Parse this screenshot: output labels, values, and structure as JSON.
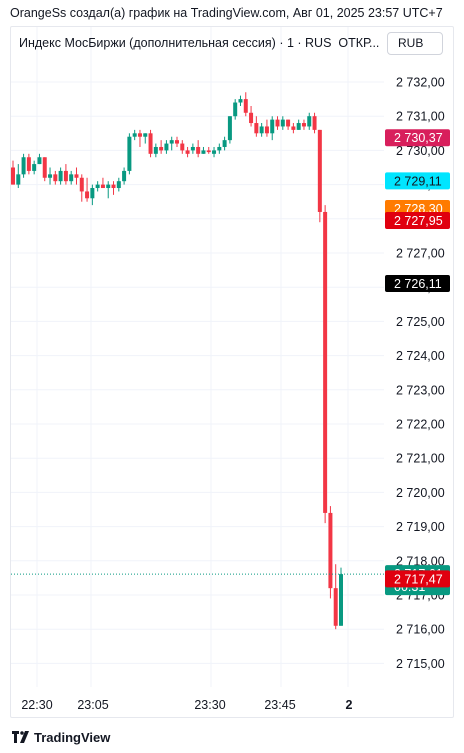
{
  "header": {
    "caption": "OrangeSs создал(а) график на TradingView.com, Авг 01, 2025 23:57 UTC+7"
  },
  "legend": {
    "symbol": "Индекс МосБиржи (дополнительная сессия) · 1 · RUS",
    "status": "ОТКР..."
  },
  "currency_button": "RUB",
  "footer": {
    "brand": "TradingView",
    "logo_icon": "tradingview-logo-icon"
  },
  "chart_data": {
    "type": "candlestick",
    "y_ticks": [
      "2 732,00",
      "2 731,00",
      "2 730,00",
      "2 729,00",
      "2 728,00",
      "2 727,00",
      "2 726,00",
      "2 725,00",
      "2 724,00",
      "2 723,00",
      "2 722,00",
      "2 721,00",
      "2 720,00",
      "2 719,00",
      "2 718,00",
      "2 717,00",
      "2 716,00",
      "2 715,00"
    ],
    "x_ticks": [
      "22:30",
      "23:05",
      "23:30",
      "23:45",
      "2"
    ],
    "colors": {
      "up": "#089981",
      "down": "#f23645"
    },
    "candles": [
      [
        2729.5,
        2729.7,
        2729.0,
        2729.0
      ],
      [
        2729.0,
        2729.6,
        2728.9,
        2729.3
      ],
      [
        2729.3,
        2729.9,
        2729.2,
        2729.8
      ],
      [
        2729.8,
        2729.9,
        2729.3,
        2729.4
      ],
      [
        2729.4,
        2729.7,
        2729.3,
        2729.6
      ],
      [
        2729.6,
        2729.9,
        2729.6,
        2729.8
      ],
      [
        2729.8,
        2729.8,
        2729.1,
        2729.2
      ],
      [
        2729.2,
        2729.5,
        2729.0,
        2729.3
      ],
      [
        2729.3,
        2729.4,
        2729.0,
        2729.1
      ],
      [
        2729.1,
        2729.5,
        2729.0,
        2729.4
      ],
      [
        2729.4,
        2729.6,
        2729.0,
        2729.1
      ],
      [
        2729.1,
        2729.4,
        2729.0,
        2729.3
      ],
      [
        2729.3,
        2729.5,
        2729.0,
        2729.2
      ],
      [
        2729.2,
        2729.3,
        2728.5,
        2728.8
      ],
      [
        2728.8,
        2729.2,
        2728.5,
        2728.6
      ],
      [
        2728.6,
        2729.0,
        2728.4,
        2728.9
      ],
      [
        2728.9,
        2729.1,
        2728.8,
        2729.0
      ],
      [
        2729.0,
        2729.2,
        2728.9,
        2728.9
      ],
      [
        2728.9,
        2729.1,
        2728.6,
        2729.0
      ],
      [
        2729.0,
        2729.1,
        2728.7,
        2728.9
      ],
      [
        2728.9,
        2729.2,
        2728.8,
        2729.1
      ],
      [
        2729.1,
        2729.5,
        2729.0,
        2729.4
      ],
      [
        2729.4,
        2730.5,
        2729.3,
        2730.4
      ],
      [
        2730.4,
        2730.6,
        2730.3,
        2730.5
      ],
      [
        2730.5,
        2730.6,
        2730.1,
        2730.4
      ],
      [
        2730.4,
        2730.5,
        2730.2,
        2730.5
      ],
      [
        2730.5,
        2730.6,
        2729.8,
        2729.9
      ],
      [
        2729.9,
        2730.2,
        2729.8,
        2730.1
      ],
      [
        2730.1,
        2730.3,
        2729.9,
        2730.0
      ],
      [
        2730.0,
        2730.3,
        2729.9,
        2730.2
      ],
      [
        2730.2,
        2730.4,
        2730.0,
        2730.3
      ],
      [
        2730.3,
        2730.4,
        2730.1,
        2730.2
      ],
      [
        2730.2,
        2730.3,
        2729.9,
        2730.0
      ],
      [
        2730.0,
        2730.1,
        2729.8,
        2729.9
      ],
      [
        2730.0,
        2730.2,
        2729.9,
        2730.1
      ],
      [
        2730.1,
        2730.3,
        2729.8,
        2729.9
      ],
      [
        2729.9,
        2730.1,
        2729.9,
        2730.0
      ],
      [
        2730.0,
        2730.1,
        2729.9,
        2729.95
      ],
      [
        2729.9,
        2730.1,
        2729.8,
        2730.0
      ],
      [
        2730.0,
        2730.2,
        2729.9,
        2730.1
      ],
      [
        2730.1,
        2730.4,
        2730.0,
        2730.3
      ],
      [
        2730.3,
        2731.0,
        2730.2,
        2731.0
      ],
      [
        2731.0,
        2731.5,
        2730.9,
        2731.4
      ],
      [
        2731.4,
        2731.6,
        2731.3,
        2731.5
      ],
      [
        2731.5,
        2731.7,
        2731.0,
        2731.1
      ],
      [
        2731.1,
        2731.3,
        2730.7,
        2730.8
      ],
      [
        2730.8,
        2731.0,
        2730.4,
        2730.5
      ],
      [
        2730.5,
        2730.8,
        2730.4,
        2730.7
      ],
      [
        2730.7,
        2730.9,
        2730.4,
        2730.5
      ],
      [
        2730.5,
        2731.0,
        2730.3,
        2730.9
      ],
      [
        2730.9,
        2731.0,
        2730.6,
        2730.7
      ],
      [
        2730.7,
        2731.0,
        2730.6,
        2730.9
      ],
      [
        2730.9,
        2730.9,
        2730.6,
        2730.7
      ],
      [
        2730.7,
        2730.8,
        2730.5,
        2730.6
      ],
      [
        2730.6,
        2730.9,
        2730.6,
        2730.8
      ],
      [
        2730.8,
        2730.9,
        2730.6,
        2730.7
      ],
      [
        2730.7,
        2731.1,
        2730.6,
        2731.0
      ],
      [
        2731.0,
        2731.1,
        2730.5,
        2730.6
      ],
      [
        2730.6,
        2730.6,
        2727.9,
        2728.2
      ],
      [
        2728.2,
        2728.4,
        2719.1,
        2719.4
      ],
      [
        2719.4,
        2719.6,
        2716.9,
        2717.2
      ],
      [
        2717.2,
        2717.9,
        2716.0,
        2716.1
      ],
      [
        2716.1,
        2717.8,
        2716.1,
        2717.61
      ]
    ],
    "price_labels": [
      {
        "value": 2730.37,
        "text": "2 730,37",
        "bg": "#d81f5c",
        "fg": "#ffffff"
      },
      {
        "value": 2729.11,
        "text": "2 729,11",
        "bg": "#00e5ff",
        "fg": "#131722"
      },
      {
        "value": 2728.3,
        "text": "2 728,30",
        "bg": "#ff7b00",
        "fg": "#ffffff"
      },
      {
        "value": 2727.95,
        "text": "2 727,95",
        "bg": "#e0000f",
        "fg": "#ffffff"
      },
      {
        "value": 2726.11,
        "text": "2 726,11",
        "bg": "#000000",
        "fg": "#ffffff"
      },
      {
        "value": 2717.61,
        "text": "2 717,61",
        "sub": "00:31",
        "bg": "#089981",
        "fg": "#ffffff"
      },
      {
        "value": 2717.47,
        "text": "2 717,47",
        "bg": "#e0000f",
        "fg": "#ffffff"
      }
    ],
    "last_price": 2717.61
  }
}
